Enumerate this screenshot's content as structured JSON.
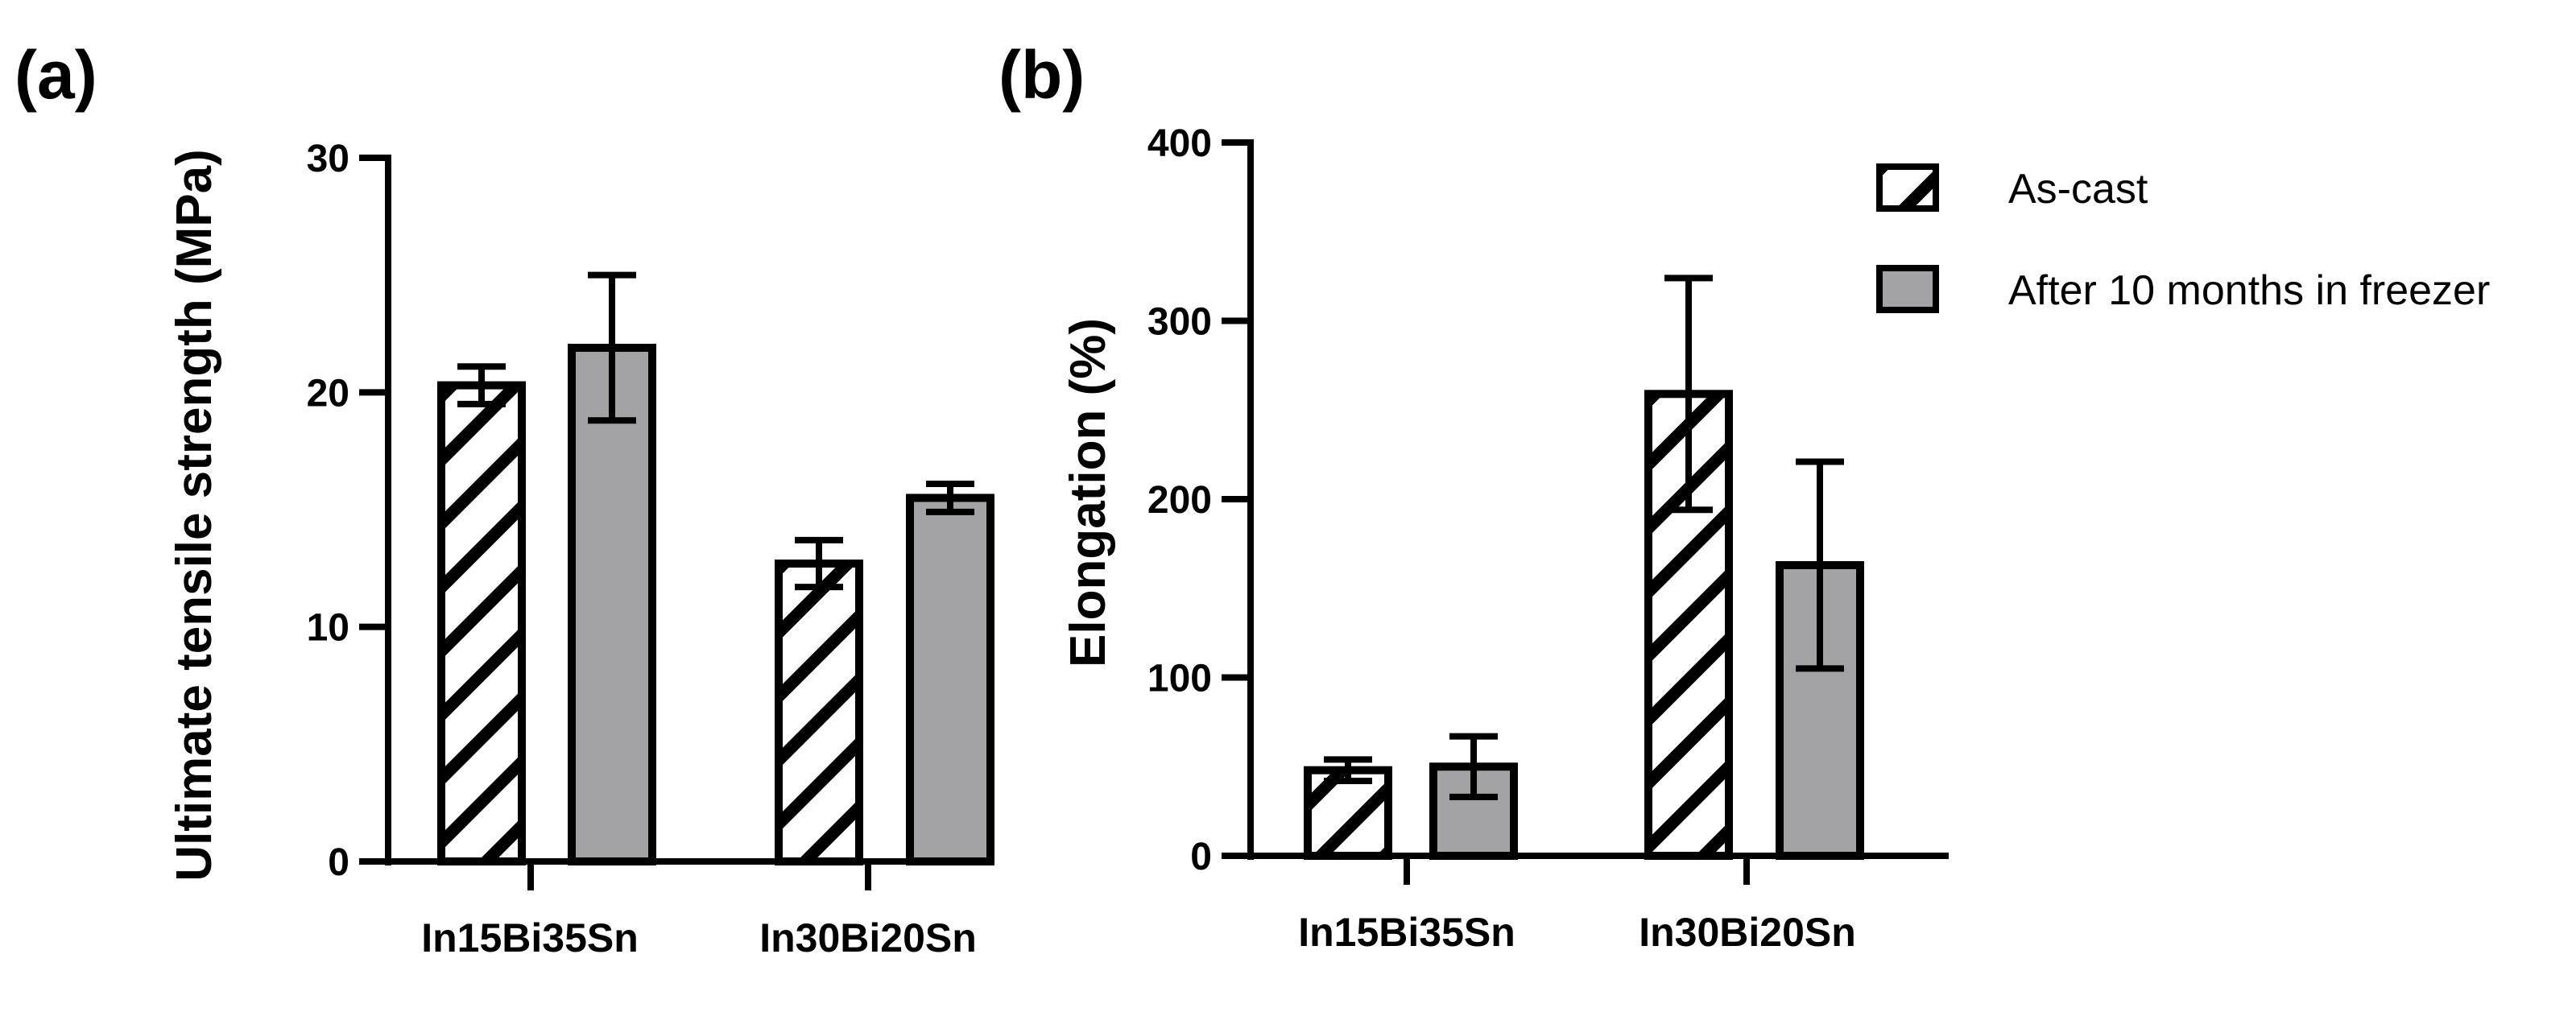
{
  "colors": {
    "axis": "#000000",
    "hatch_bar_fill": "#ffffff",
    "hatch_stroke": "#000000",
    "gray_bar_fill": "#a3a3a6"
  },
  "legend": {
    "position": "top-right",
    "items": [
      {
        "label": "As-cast",
        "pattern": "hatch"
      },
      {
        "label": "After 10 months in freezer",
        "pattern": "gray"
      }
    ]
  },
  "chart_data": [
    {
      "panel": "(a)",
      "type": "bar",
      "ylabel": "Ultimate tensile strength (MPa)",
      "xlabel": "",
      "ylim": [
        0,
        30
      ],
      "yticks": [
        "0",
        "10",
        "20",
        "30"
      ],
      "categories": [
        "In15Bi35Sn",
        "In30Bi20Sn"
      ],
      "series": [
        {
          "name": "As-cast",
          "values": [
            20.3,
            12.7
          ],
          "errors": [
            0.8,
            1.0
          ]
        },
        {
          "name": "After 10 months in freezer",
          "values": [
            21.9,
            15.5
          ],
          "errors": [
            3.1,
            0.6
          ]
        }
      ],
      "grid": false
    },
    {
      "panel": "(b)",
      "type": "bar",
      "ylabel": "Elongation (%)",
      "xlabel": "",
      "ylim": [
        0,
        400
      ],
      "yticks": [
        "0",
        "100",
        "200",
        "300",
        "400"
      ],
      "categories": [
        "In15Bi35Sn",
        "In30Bi20Sn"
      ],
      "series": [
        {
          "name": "As-cast",
          "values": [
            48,
            259
          ],
          "errors": [
            6,
            65
          ]
        },
        {
          "name": "After 10 months in freezer",
          "values": [
            50,
            163
          ],
          "errors": [
            17,
            58
          ]
        }
      ],
      "grid": false
    }
  ]
}
